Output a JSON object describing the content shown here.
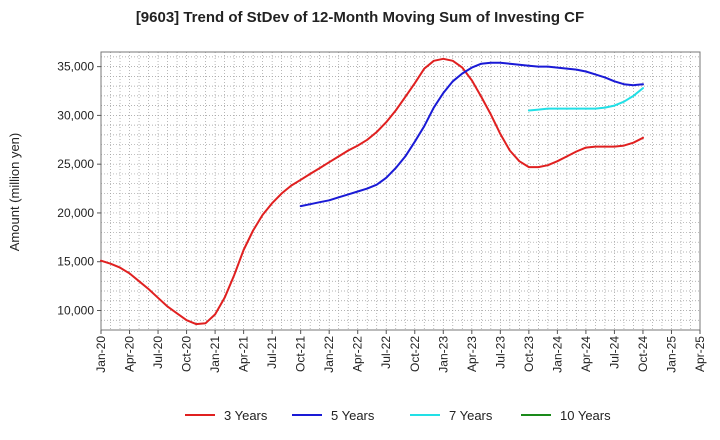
{
  "chart_data": {
    "type": "line",
    "title": "[9603]  Trend of StDev of 12-Month Moving Sum of Investing CF",
    "xlabel": "",
    "ylabel": "Amount (million yen)",
    "ylim": [
      8000,
      36500
    ],
    "yticks": [
      10000,
      15000,
      20000,
      25000,
      30000,
      35000
    ],
    "ytick_labels": [
      "10,000",
      "15,000",
      "20,000",
      "25,000",
      "30,000",
      "35,000"
    ],
    "xlim": [
      "2020-01",
      "2025-04"
    ],
    "xtick_labels": [
      "Jan-20",
      "Apr-20",
      "Jul-20",
      "Oct-20",
      "Jan-21",
      "Apr-21",
      "Jul-21",
      "Oct-21",
      "Jan-22",
      "Apr-22",
      "Jul-22",
      "Oct-22",
      "Jan-23",
      "Apr-23",
      "Jul-23",
      "Oct-23",
      "Jan-24",
      "Apr-24",
      "Jul-24",
      "Oct-24",
      "Jan-25",
      "Apr-25"
    ],
    "grid": true,
    "legend_position": "bottom",
    "series": [
      {
        "name": "3 Years",
        "color": "#e02020",
        "x": [
          "2020-01",
          "2020-02",
          "2020-03",
          "2020-04",
          "2020-05",
          "2020-06",
          "2020-07",
          "2020-08",
          "2020-09",
          "2020-10",
          "2020-11",
          "2020-12",
          "2021-01",
          "2021-02",
          "2021-03",
          "2021-04",
          "2021-05",
          "2021-06",
          "2021-07",
          "2021-08",
          "2021-09",
          "2021-10",
          "2021-11",
          "2021-12",
          "2022-01",
          "2022-02",
          "2022-03",
          "2022-04",
          "2022-05",
          "2022-06",
          "2022-07",
          "2022-08",
          "2022-09",
          "2022-10",
          "2022-11",
          "2022-12",
          "2023-01",
          "2023-02",
          "2023-03",
          "2023-04",
          "2023-05",
          "2023-06",
          "2023-07",
          "2023-08",
          "2023-09",
          "2023-10",
          "2023-11",
          "2023-12",
          "2024-01",
          "2024-02",
          "2024-03",
          "2024-04",
          "2024-05",
          "2024-06",
          "2024-07",
          "2024-08",
          "2024-09",
          "2024-10"
        ],
        "values": [
          15100,
          14800,
          14400,
          13800,
          13000,
          12200,
          11300,
          10400,
          9700,
          9000,
          8600,
          8700,
          9600,
          11300,
          13600,
          16200,
          18200,
          19800,
          21000,
          22000,
          22800,
          23400,
          24000,
          24600,
          25200,
          25800,
          26400,
          26900,
          27500,
          28300,
          29300,
          30500,
          31900,
          33300,
          34800,
          35600,
          35800,
          35600,
          34900,
          33600,
          31900,
          30100,
          28100,
          26400,
          25300,
          24700,
          24700,
          24900,
          25300,
          25800,
          26300,
          26700,
          26800,
          26800,
          26800,
          26900,
          27200,
          27700
        ]
      },
      {
        "name": "5 Years",
        "color": "#1a1ad6",
        "x": [
          "2021-10",
          "2021-11",
          "2021-12",
          "2022-01",
          "2022-02",
          "2022-03",
          "2022-04",
          "2022-05",
          "2022-06",
          "2022-07",
          "2022-08",
          "2022-09",
          "2022-10",
          "2022-11",
          "2022-12",
          "2023-01",
          "2023-02",
          "2023-03",
          "2023-04",
          "2023-05",
          "2023-06",
          "2023-07",
          "2023-08",
          "2023-09",
          "2023-10",
          "2023-11",
          "2023-12",
          "2024-01",
          "2024-02",
          "2024-03",
          "2024-04",
          "2024-05",
          "2024-06",
          "2024-07",
          "2024-08",
          "2024-09",
          "2024-10"
        ],
        "values": [
          20700,
          20900,
          21100,
          21300,
          21600,
          21900,
          22200,
          22500,
          22900,
          23600,
          24600,
          25800,
          27300,
          28900,
          30800,
          32300,
          33500,
          34300,
          34900,
          35300,
          35400,
          35400,
          35300,
          35200,
          35100,
          35000,
          35000,
          34900,
          34800,
          34700,
          34500,
          34200,
          33900,
          33500,
          33200,
          33100,
          33200
        ]
      },
      {
        "name": "7 Years",
        "color": "#22e0e6",
        "x": [
          "2023-10",
          "2023-11",
          "2023-12",
          "2024-01",
          "2024-02",
          "2024-03",
          "2024-04",
          "2024-05",
          "2024-06",
          "2024-07",
          "2024-08",
          "2024-09",
          "2024-10"
        ],
        "values": [
          30500,
          30600,
          30700,
          30700,
          30700,
          30700,
          30700,
          30700,
          30800,
          31000,
          31400,
          32000,
          32800
        ]
      },
      {
        "name": "10 Years",
        "color": "#1a8a1a",
        "x": [],
        "values": []
      }
    ]
  }
}
